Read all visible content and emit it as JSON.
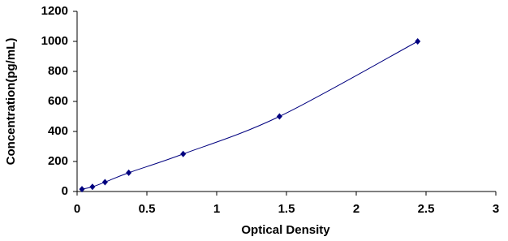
{
  "chart_data": {
    "type": "scatter",
    "x_label": "Optical Density",
    "y_label": "Concentration(pg/mL)",
    "x": [
      0.035,
      0.11,
      0.2,
      0.37,
      0.76,
      1.45,
      2.44
    ],
    "series": [
      {
        "color": "#00007f",
        "values": [
          15.6,
          31.2,
          62.5,
          125,
          250,
          500,
          1000
        ]
      }
    ],
    "xlim": [
      0,
      3
    ],
    "xticks": [
      0,
      0.5,
      1,
      1.5,
      2,
      2.5,
      3
    ],
    "ylim": [
      0,
      1200
    ],
    "yticks": [
      0,
      200,
      400,
      600,
      800,
      1000,
      1200
    ],
    "grid": false,
    "line": "smooth"
  }
}
